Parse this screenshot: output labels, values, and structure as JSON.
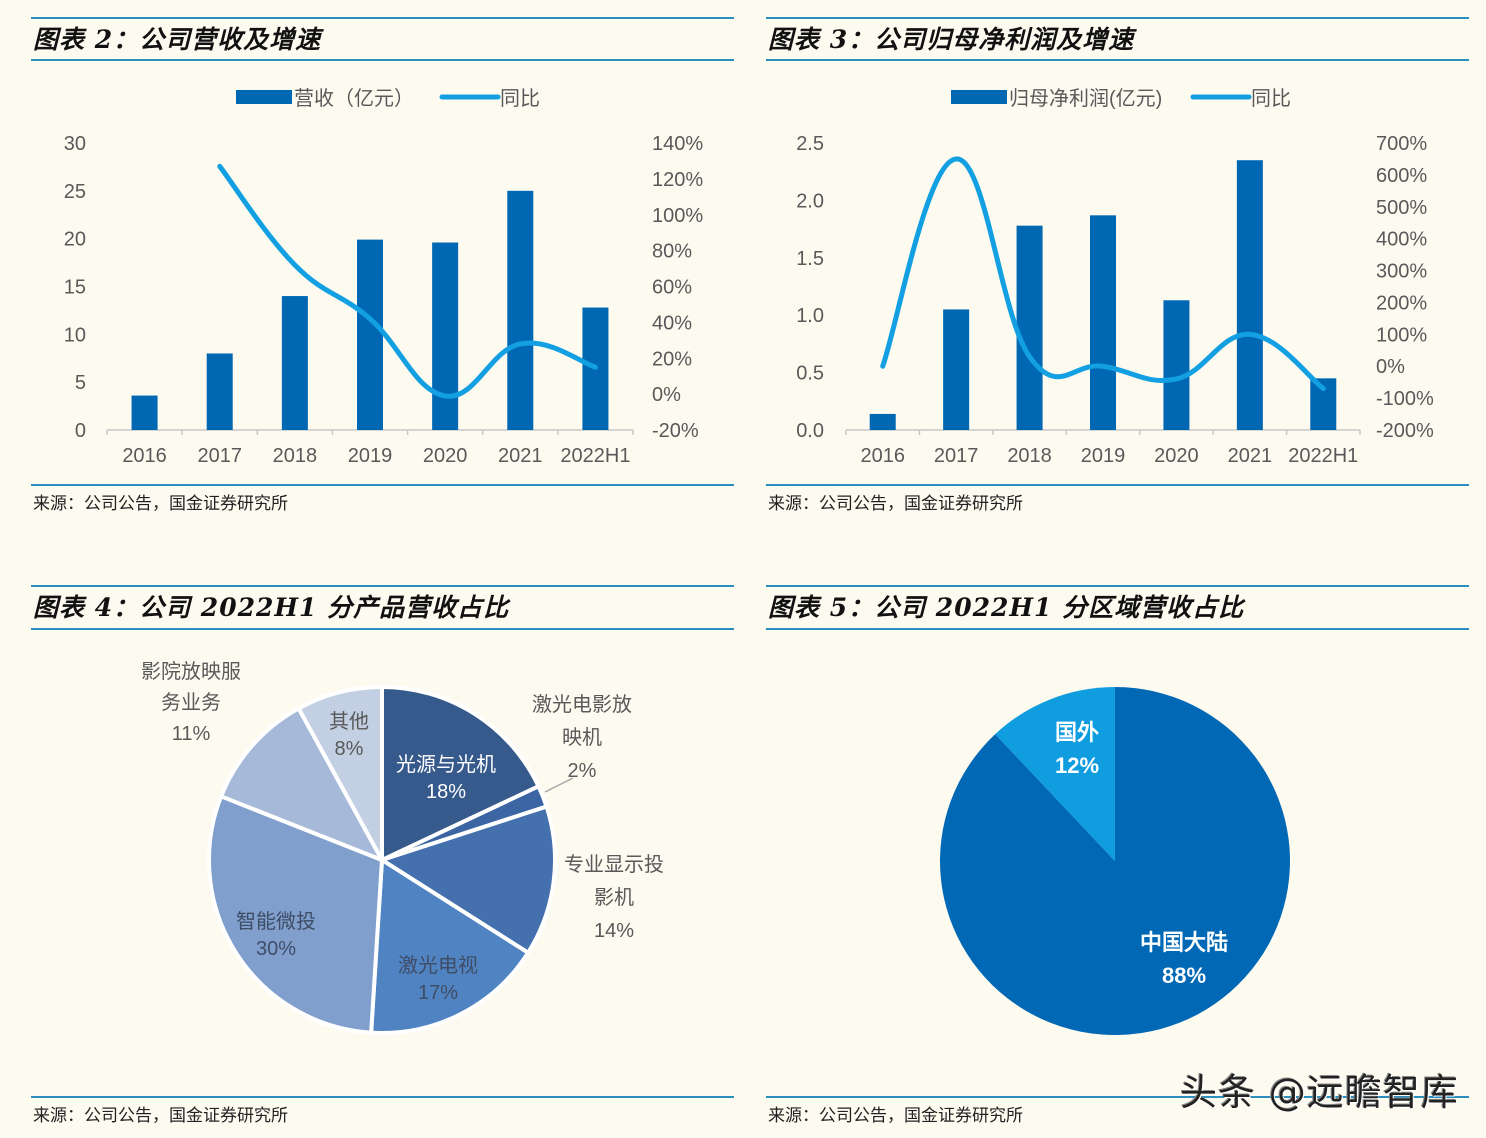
{
  "figures": [
    {
      "title": "图表 2：公司营收及增速",
      "source": "来源：公司公告，国金证券研究所"
    },
    {
      "title": "图表 3：公司归母净利润及增速",
      "source": "来源：公司公告，国金证券研究所"
    },
    {
      "title": "图表 4：公司 2022H1 分产品营收占比",
      "source": "来源：公司公告，国金证券研究所"
    },
    {
      "title": "图表 5：公司 2022H1 分区域营收占比",
      "source": "来源：公司公告，国金证券研究所"
    }
  ],
  "watermark": "头条 @远瞻智库",
  "colors": {
    "bar": "#0067b3",
    "line": "#12a0e3",
    "rule": "#2a8fbf",
    "background": "#fdfaf0",
    "axis_text": "#595959"
  },
  "chart_data": [
    {
      "type": "bar+line",
      "title": "图表 2：公司营收及增速",
      "categories": [
        "2016",
        "2017",
        "2018",
        "2019",
        "2020",
        "2021",
        "2022H1"
      ],
      "series": [
        {
          "name": "营收（亿元）",
          "type": "bar",
          "axis": "left",
          "values": [
            3.6,
            8.0,
            14.0,
            19.9,
            19.6,
            25.0,
            12.8
          ]
        },
        {
          "name": "同比",
          "type": "line",
          "axis": "right",
          "values": [
            null,
            1.27,
            0.72,
            0.42,
            -0.01,
            0.28,
            0.15
          ]
        }
      ],
      "left_axis": {
        "ticks": [
          "0",
          "5",
          "10",
          "15",
          "20",
          "25",
          "30"
        ],
        "range": [
          0,
          30
        ]
      },
      "right_axis": {
        "ticks": [
          "-20%",
          "0%",
          "20%",
          "40%",
          "60%",
          "80%",
          "100%",
          "120%",
          "140%"
        ],
        "range": [
          -0.2,
          1.4
        ]
      },
      "legend_position": "top",
      "grid": false
    },
    {
      "type": "bar+line",
      "title": "图表 3：公司归母净利润及增速",
      "categories": [
        "2016",
        "2017",
        "2018",
        "2019",
        "2020",
        "2021",
        "2022H1"
      ],
      "series": [
        {
          "name": "归母净利润(亿元)",
          "type": "bar",
          "axis": "left",
          "values": [
            0.14,
            1.05,
            1.78,
            1.87,
            1.13,
            2.35,
            0.45
          ]
        },
        {
          "name": "同比",
          "type": "line",
          "axis": "right",
          "values": [
            0.0,
            6.5,
            0.3,
            0.0,
            -0.4,
            1.0,
            -0.7
          ]
        }
      ],
      "left_axis": {
        "ticks": [
          "0.0",
          "0.5",
          "1.0",
          "1.5",
          "2.0",
          "2.5"
        ],
        "range": [
          0,
          2.5
        ]
      },
      "right_axis": {
        "ticks": [
          "-200%",
          "-100%",
          "0%",
          "100%",
          "200%",
          "300%",
          "400%",
          "500%",
          "600%",
          "700%"
        ],
        "range": [
          -2.0,
          7.0
        ]
      },
      "legend_position": "top",
      "grid": false
    },
    {
      "type": "pie",
      "title": "图表 4：公司 2022H1 分产品营收占比",
      "slices": [
        {
          "label": "光源与光机",
          "value": 18,
          "pct": "18%",
          "color": "#375a8c",
          "text_color": "#ffffff"
        },
        {
          "label": "激光电影放映机",
          "value": 2,
          "pct": "2%",
          "color": "#3c66a3",
          "text_color": "#595959"
        },
        {
          "label": "专业显示投影机",
          "value": 14,
          "pct": "14%",
          "color": "#4470ad",
          "text_color": "#595959"
        },
        {
          "label": "激光电视",
          "value": 17,
          "pct": "17%",
          "color": "#5083c2",
          "text_color": "#3f4d66"
        },
        {
          "label": "智能微投",
          "value": 30,
          "pct": "30%",
          "color": "#809fcd",
          "text_color": "#3f4d66"
        },
        {
          "label": "影院放映服务业务",
          "value": 11,
          "pct": "11%",
          "color": "#a6b9d9",
          "text_color": "#595959"
        },
        {
          "label": "其他",
          "value": 8,
          "pct": "8%",
          "color": "#c3cfe3",
          "text_color": "#595959"
        }
      ]
    },
    {
      "type": "pie",
      "title": "图表 5：公司 2022H1 分区域营收占比",
      "slices": [
        {
          "label": "中国大陆",
          "value": 88,
          "pct": "88%",
          "color": "#0068b4",
          "text_color": "#ffffff"
        },
        {
          "label": "国外",
          "value": 12,
          "pct": "12%",
          "color": "#0f9de0",
          "text_color": "#ffffff"
        }
      ]
    }
  ]
}
